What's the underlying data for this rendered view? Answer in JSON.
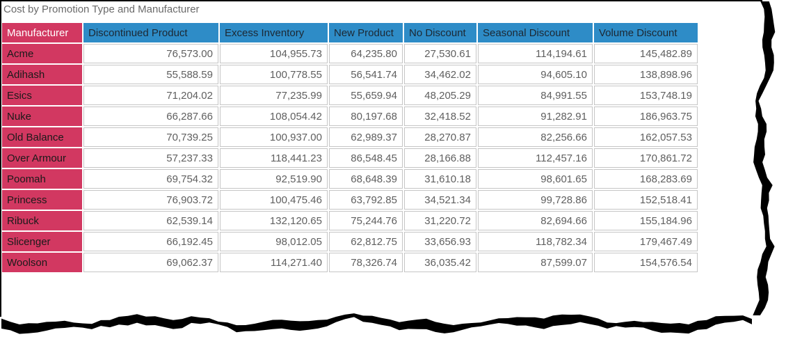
{
  "title": "Cost by Promotion Type and Manufacturer",
  "colors": {
    "row_header_bg": "#d23861",
    "column_header_bg": "#2e8cc7",
    "column_header_text": "#1c2833",
    "corner_header_text": "#ffffff",
    "row_header_text": "#1a1a1a",
    "cell_text": "#5f5f5f",
    "title_text": "#6a6a6a",
    "grid_border": "#c5c5c5",
    "torn_edge": "#000000"
  },
  "chart_data": {
    "type": "table",
    "title": "Cost by Promotion Type and Manufacturer",
    "columns": [
      "Manufacturer",
      "Discontinued Product",
      "Excess Inventory",
      "New Product",
      "No Discount",
      "Seasonal Discount",
      "Volume Discount"
    ],
    "rows": [
      {
        "manufacturer": "Acme",
        "values": [
          "76,573.00",
          "104,955.73",
          "64,235.80",
          "27,530.61",
          "114,194.61",
          "145,482.89"
        ]
      },
      {
        "manufacturer": "Adihash",
        "values": [
          "55,588.59",
          "100,778.55",
          "56,541.74",
          "34,462.02",
          "94,605.10",
          "138,898.96"
        ]
      },
      {
        "manufacturer": "Esics",
        "values": [
          "71,204.02",
          "77,235.99",
          "55,659.94",
          "48,205.29",
          "84,991.55",
          "153,748.19"
        ]
      },
      {
        "manufacturer": "Nuke",
        "values": [
          "66,287.66",
          "108,054.42",
          "80,197.68",
          "32,418.52",
          "91,282.91",
          "186,963.75"
        ]
      },
      {
        "manufacturer": "Old Balance",
        "values": [
          "70,739.25",
          "100,937.00",
          "62,989.37",
          "28,270.87",
          "82,256.66",
          "162,057.53"
        ]
      },
      {
        "manufacturer": "Over Armour",
        "values": [
          "57,237.33",
          "118,441.23",
          "86,548.45",
          "28,166.88",
          "112,457.16",
          "170,861.72"
        ]
      },
      {
        "manufacturer": "Poomah",
        "values": [
          "69,754.32",
          "92,519.90",
          "68,648.39",
          "31,610.18",
          "98,601.65",
          "168,283.69"
        ]
      },
      {
        "manufacturer": "Princess",
        "values": [
          "76,903.72",
          "100,475.46",
          "63,792.85",
          "34,521.34",
          "99,728.86",
          "152,518.41"
        ]
      },
      {
        "manufacturer": "Ribuck",
        "values": [
          "62,539.14",
          "132,120.65",
          "75,244.76",
          "31,220.72",
          "82,694.66",
          "155,184.96"
        ]
      },
      {
        "manufacturer": "Slicenger",
        "values": [
          "66,192.45",
          "98,012.05",
          "62,812.75",
          "33,656.93",
          "118,782.34",
          "179,467.49"
        ]
      },
      {
        "manufacturer": "Woolson",
        "values": [
          "69,062.37",
          "114,271.40",
          "78,326.74",
          "36,035.42",
          "87,599.07",
          "154,576.54"
        ]
      }
    ]
  }
}
